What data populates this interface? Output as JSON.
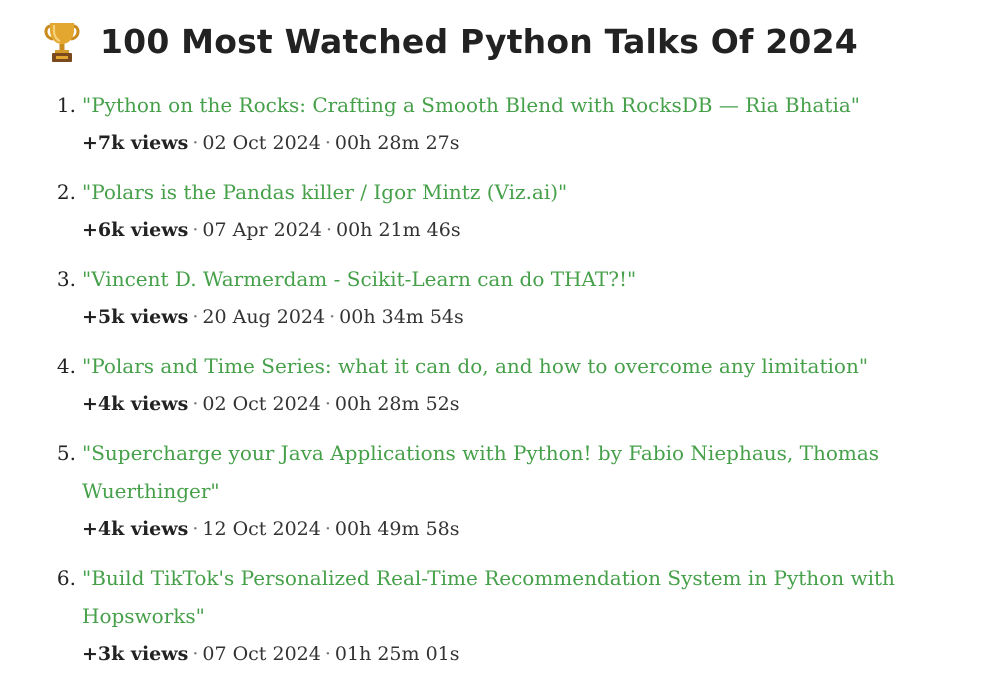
{
  "header": {
    "title": "100 Most Watched Python Talks Of 2024",
    "icon": "trophy-icon",
    "icon_color": "#d49a2a"
  },
  "colors": {
    "link": "#46a04a",
    "text": "#222222"
  },
  "talks": [
    {
      "number": "1.",
      "title": "\"Python on the Rocks: Crafting a Smooth Blend with RocksDB — Ria Bhatia\"",
      "views": "+7k views",
      "date": "02 Oct 2024",
      "duration": "00h 28m 27s"
    },
    {
      "number": "2.",
      "title": "\"Polars is the Pandas killer / Igor Mintz (Viz.ai)\"",
      "views": "+6k views",
      "date": "07 Apr 2024",
      "duration": "00h 21m 46s"
    },
    {
      "number": "3.",
      "title": "\"Vincent D. Warmerdam - Scikit-Learn can do THAT?!\"",
      "views": "+5k views",
      "date": "20 Aug 2024",
      "duration": "00h 34m 54s"
    },
    {
      "number": "4.",
      "title": "\"Polars and Time Series: what it can do, and how to overcome any limitation\"",
      "views": "+4k views",
      "date": "02 Oct 2024",
      "duration": "00h 28m 52s"
    },
    {
      "number": "5.",
      "title": "\"Supercharge your Java Applications with Python! by Fabio Niephaus, Thomas Wuerthinger\"",
      "views": "+4k views",
      "date": "12 Oct 2024",
      "duration": "00h 49m 58s"
    },
    {
      "number": "6.",
      "title": "\"Build TikTok's Personalized Real-Time Recommendation System in Python with Hopsworks\"",
      "views": "+3k views",
      "date": "07 Oct 2024",
      "duration": "01h 25m 01s"
    }
  ]
}
